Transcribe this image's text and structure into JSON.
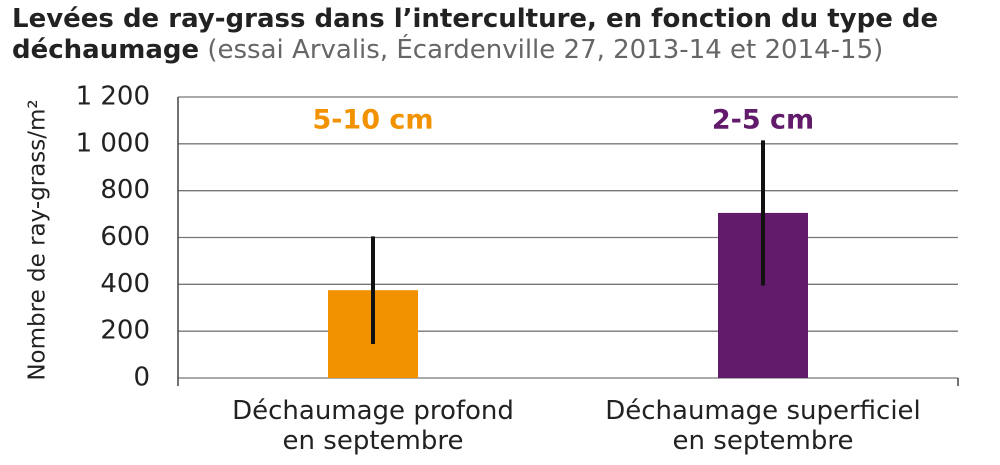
{
  "chart_data": {
    "type": "bar",
    "title": "Levées de ray-grass dans l’interculture, en fonction du type de déchaumage",
    "subtitle": "(essai Arvalis, Écardenville 27, 2013-14 et 2014-15)",
    "y_label": "Nombre de ray-grass/m²",
    "categories": [
      "Déchaumage profond\nen septembre",
      "Déchaumage superficiel\nen septembre"
    ],
    "values": [
      375,
      705
    ],
    "errors": [
      230,
      310
    ],
    "colors": [
      "#f39200",
      "#621b6b"
    ],
    "annotations": [
      "5-10 cm",
      "2-5 cm"
    ],
    "ylim": [
      0,
      1200
    ],
    "yticks": [
      0,
      200,
      400,
      600,
      800,
      {
        "value": 1000,
        "label": "1 000"
      },
      {
        "value": 1200,
        "label": "1 200"
      }
    ],
    "grid": true
  }
}
